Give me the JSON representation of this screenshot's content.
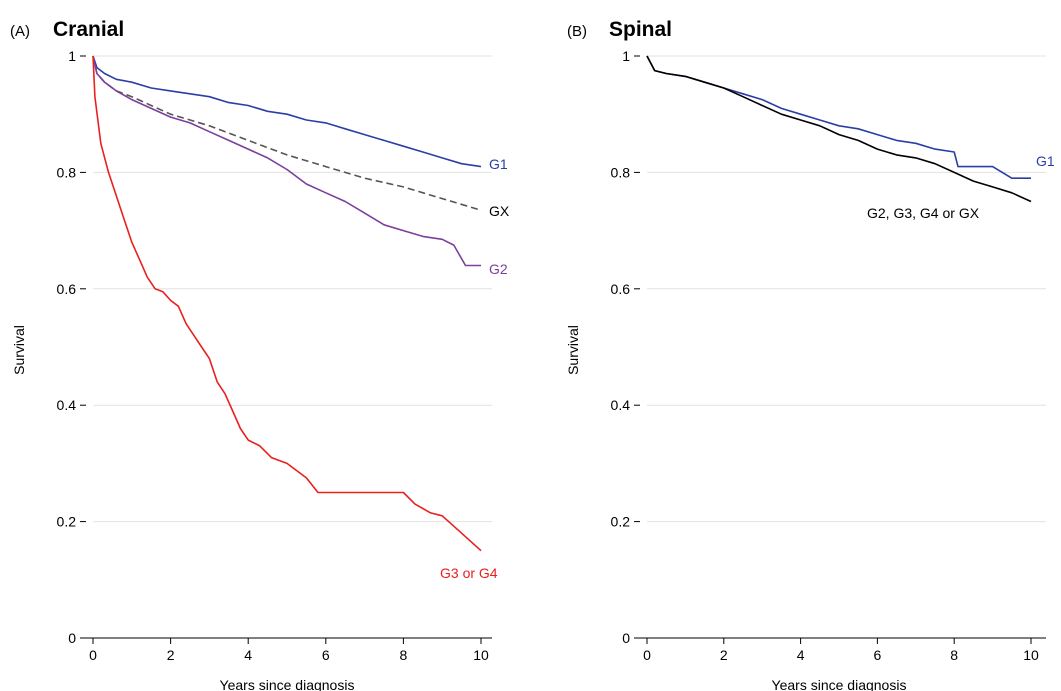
{
  "chart_data": [
    {
      "type": "line",
      "panel_label": "(A)",
      "title": "Cranial",
      "xlabel": "Years since diagnosis",
      "ylabel": "Survival",
      "xlim": [
        0,
        10
      ],
      "ylim": [
        0,
        1
      ],
      "x_ticks": [
        0,
        2,
        4,
        6,
        8,
        10
      ],
      "y_ticks": [
        0,
        0.2,
        0.4,
        0.6,
        0.8,
        1
      ],
      "y_tick_labels": [
        "0",
        "0.2",
        "0.4",
        "0.6",
        "0.8",
        "1"
      ],
      "grid": true,
      "legend": "direct labels at line ends",
      "series": [
        {
          "name": "G1",
          "color": "#2a3fa6",
          "style": "solid",
          "x": [
            0,
            0.1,
            0.3,
            0.6,
            1,
            1.5,
            2,
            2.5,
            3,
            3.5,
            4,
            4.5,
            5,
            5.5,
            6,
            6.5,
            7,
            7.5,
            8,
            8.5,
            9,
            9.5,
            10
          ],
          "y": [
            1,
            0.98,
            0.97,
            0.96,
            0.955,
            0.945,
            0.94,
            0.935,
            0.93,
            0.92,
            0.915,
            0.905,
            0.9,
            0.89,
            0.885,
            0.875,
            0.865,
            0.855,
            0.845,
            0.835,
            0.825,
            0.815,
            0.81
          ]
        },
        {
          "name": "GX",
          "color": "#555555",
          "style": "dashed",
          "x": [
            0,
            0.1,
            0.3,
            0.6,
            1,
            1.5,
            2,
            3,
            4,
            5,
            6,
            7,
            8,
            9,
            10
          ],
          "y": [
            1,
            0.97,
            0.955,
            0.94,
            0.93,
            0.915,
            0.9,
            0.88,
            0.855,
            0.83,
            0.81,
            0.79,
            0.775,
            0.755,
            0.735
          ]
        },
        {
          "name": "G2",
          "color": "#7b3f9e",
          "style": "solid",
          "x": [
            0,
            0.1,
            0.3,
            0.6,
            1,
            1.5,
            2,
            2.5,
            3,
            3.5,
            4,
            4.5,
            5,
            5.5,
            6,
            6.5,
            7,
            7.5,
            8,
            8.5,
            9,
            9.3,
            9.6,
            10
          ],
          "y": [
            1,
            0.97,
            0.955,
            0.94,
            0.925,
            0.91,
            0.895,
            0.885,
            0.87,
            0.855,
            0.84,
            0.825,
            0.805,
            0.78,
            0.765,
            0.75,
            0.73,
            0.71,
            0.7,
            0.69,
            0.685,
            0.675,
            0.64,
            0.64
          ]
        },
        {
          "name": "G3 or G4",
          "color": "#e8201f",
          "style": "solid",
          "x": [
            0,
            0.05,
            0.2,
            0.4,
            0.6,
            0.8,
            1,
            1.2,
            1.4,
            1.6,
            1.8,
            2,
            2.2,
            2.4,
            2.6,
            2.8,
            3,
            3.2,
            3.4,
            3.6,
            3.8,
            4,
            4.3,
            4.6,
            5,
            5.5,
            5.8,
            6.5,
            7.5,
            8,
            8.3,
            8.7,
            9,
            9.5,
            10
          ],
          "y": [
            1,
            0.93,
            0.85,
            0.8,
            0.76,
            0.72,
            0.68,
            0.65,
            0.62,
            0.6,
            0.595,
            0.58,
            0.57,
            0.54,
            0.52,
            0.5,
            0.48,
            0.44,
            0.42,
            0.39,
            0.36,
            0.34,
            0.33,
            0.31,
            0.3,
            0.275,
            0.25,
            0.25,
            0.25,
            0.25,
            0.23,
            0.215,
            0.21,
            0.18,
            0.15
          ]
        }
      ]
    },
    {
      "type": "line",
      "panel_label": "(B)",
      "title": "Spinal",
      "xlabel": "Years since diagnosis",
      "ylabel": "Survival",
      "xlim": [
        0,
        10
      ],
      "ylim": [
        0,
        1
      ],
      "x_ticks": [
        0,
        2,
        4,
        6,
        8,
        10
      ],
      "y_ticks": [
        0,
        0.2,
        0.4,
        0.6,
        0.8,
        1
      ],
      "y_tick_labels": [
        "0",
        "0.2",
        "0.4",
        "0.6",
        "0.8",
        "1"
      ],
      "grid": true,
      "legend": "direct labels at line ends",
      "series": [
        {
          "name": "G1",
          "color": "#2a3fa6",
          "style": "solid",
          "x": [
            0,
            0.2,
            0.5,
            1,
            1.5,
            2,
            2.5,
            3,
            3.5,
            4,
            4.5,
            5,
            5.5,
            6,
            6.5,
            7,
            7.5,
            8,
            8.1,
            9,
            9.5,
            10
          ],
          "y": [
            1,
            0.975,
            0.97,
            0.965,
            0.955,
            0.945,
            0.935,
            0.925,
            0.91,
            0.9,
            0.89,
            0.88,
            0.875,
            0.865,
            0.855,
            0.85,
            0.84,
            0.835,
            0.81,
            0.81,
            0.79,
            0.79
          ]
        },
        {
          "name": "G2, G3, G4 or GX",
          "color": "#000000",
          "style": "solid",
          "x": [
            0,
            0.2,
            0.5,
            1,
            1.5,
            2,
            2.5,
            3,
            3.5,
            4,
            4.5,
            5,
            5.5,
            6,
            6.5,
            7,
            7.5,
            8,
            8.5,
            9,
            9.5,
            10
          ],
          "y": [
            1,
            0.975,
            0.97,
            0.965,
            0.955,
            0.945,
            0.93,
            0.915,
            0.9,
            0.89,
            0.88,
            0.865,
            0.855,
            0.84,
            0.83,
            0.825,
            0.815,
            0.8,
            0.785,
            0.775,
            0.765,
            0.75
          ]
        }
      ]
    }
  ]
}
